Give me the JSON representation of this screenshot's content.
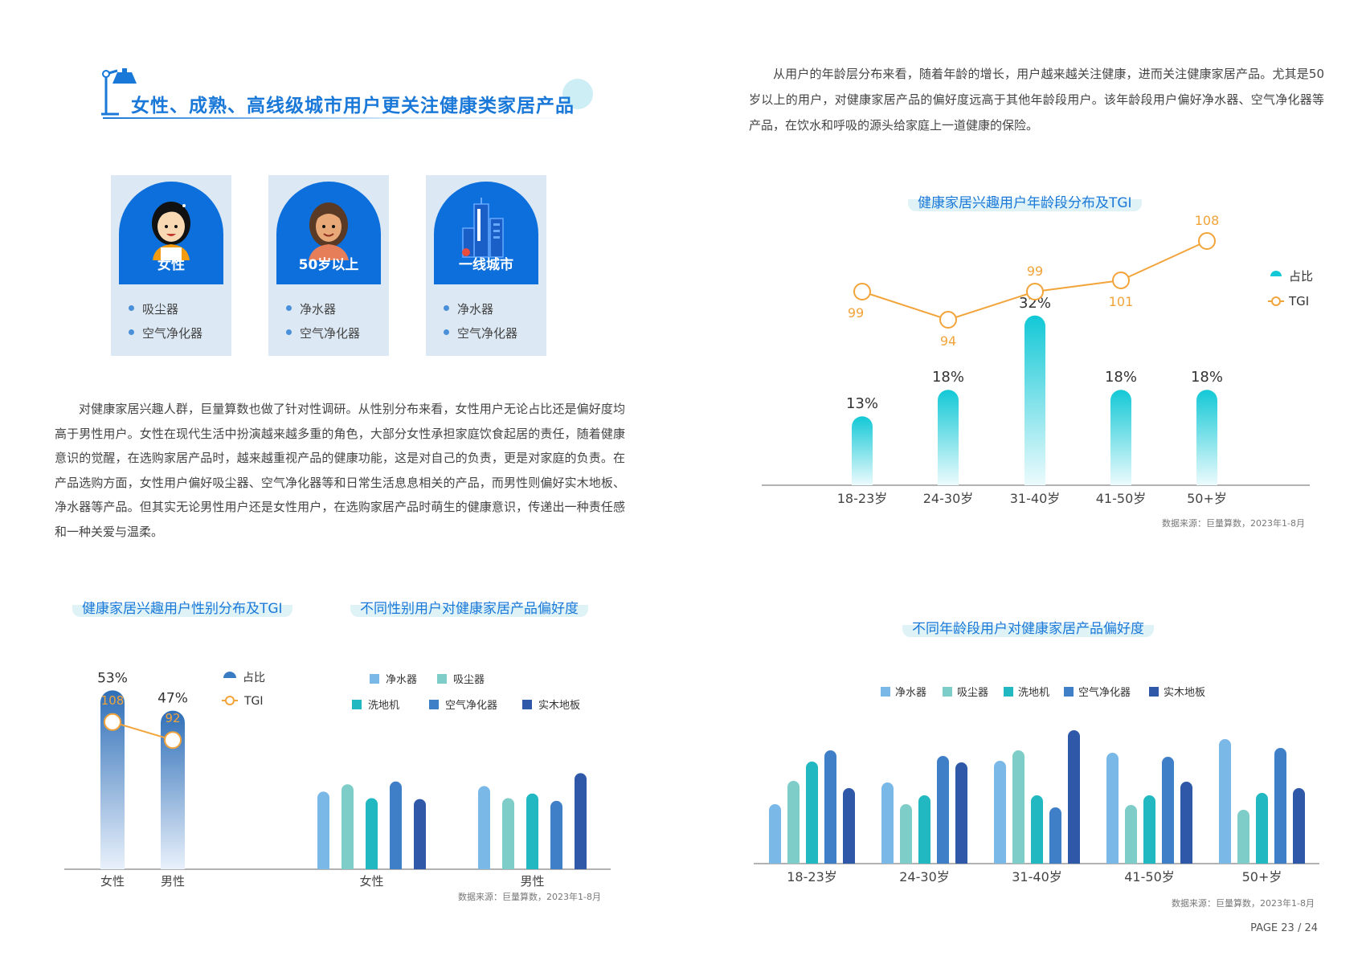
{
  "header": {
    "title": "女性、成熟、高线级城市用户更关注健康类家居产品"
  },
  "profiles": [
    {
      "label": "女性",
      "items": [
        "吸尘器",
        "空气净化器"
      ]
    },
    {
      "label": "50岁以上",
      "items": [
        "净水器",
        "空气净化器"
      ]
    },
    {
      "label": "一线城市",
      "items": [
        "净水器",
        "空气净化器"
      ]
    }
  ],
  "paragraph_left": "对健康家居兴趣人群，巨量算数也做了针对性调研。从性别分布来看，女性用户无论占比还是偏好度均高于男性用户。女性在现代生活中扮演越来越多重的角色，大部分女性承担家庭饮食起居的责任，随着健康意识的觉醒，在选购家居产品时，越来越重视产品的健康功能，这是对自己的负责，更是对家庭的负责。在产品选购方面，女性用户偏好吸尘器、空气净化器等和日常生活息息相关的产品，而男性则偏好实木地板、净水器等产品。但其实无论男性用户还是女性用户，在选购家居产品时萌生的健康意识，传递出一种责任感和一种关爱与温柔。",
  "paragraph_right": "从用户的年龄层分布来看，随着年龄的增长，用户越来越关注健康，进而关注健康家居产品。尤其是50岁以上的用户，对健康家居产品的偏好度远高于其他年龄段用户。该年龄段用户偏好净水器、空气净化器等产品，在饮水和呼吸的源头给家庭上一道健康的保险。",
  "source": "数据来源：巨量算数，2023年1-8月",
  "page": "PAGE 23 / 24",
  "colors": {
    "accent": "#1a78d8",
    "card_blue": "#0d6fdc",
    "tgi_orange": "#f2a43a",
    "teal": "#19c6d6",
    "p1": "#7ab8e8",
    "p2": "#7fcdc8",
    "p3": "#21b8c2",
    "p4": "#3f7fc8",
    "p5": "#2f58a8"
  },
  "chart_data": [
    {
      "id": "gender_share",
      "type": "bar+line",
      "title": "健康家居兴趣用户性别分布及TGI",
      "categories": [
        "女性",
        "男性"
      ],
      "series": [
        {
          "name": "占比",
          "values": [
            53,
            47
          ],
          "labels": [
            "53%",
            "47%"
          ]
        },
        {
          "name": "TGI",
          "values": [
            108,
            92
          ]
        }
      ],
      "legend": "top-right"
    },
    {
      "id": "gender_preference",
      "type": "bar",
      "title": "不同性别用户对健康家居产品偏好度",
      "categories": [
        "女性",
        "男性"
      ],
      "series": [
        {
          "name": "净水器",
          "values": [
            84,
            90
          ]
        },
        {
          "name": "吸尘器",
          "values": [
            92,
            77
          ]
        },
        {
          "name": "洗地机",
          "values": [
            77,
            82
          ]
        },
        {
          "name": "空气净化器",
          "values": [
            95,
            74
          ]
        },
        {
          "name": "实木地板",
          "values": [
            76,
            104
          ]
        }
      ],
      "legend": "top",
      "y_axis": "hidden"
    },
    {
      "id": "age_share",
      "type": "bar+line",
      "title": "健康家居兴趣用户年龄段分布及TGI",
      "categories": [
        "18-23岁",
        "24-30岁",
        "31-40岁",
        "41-50岁",
        "50+岁"
      ],
      "series": [
        {
          "name": "占比",
          "values": [
            13,
            18,
            32,
            18,
            18
          ],
          "labels": [
            "13%",
            "18%",
            "32%",
            "18%",
            "18%"
          ]
        },
        {
          "name": "TGI",
          "values": [
            99,
            94,
            99,
            101,
            108
          ]
        }
      ],
      "legend": "right"
    },
    {
      "id": "age_preference",
      "type": "bar",
      "title": "不同年龄段用户对健康家居产品偏好度",
      "categories": [
        "18-23岁",
        "24-30岁",
        "31-40岁",
        "41-50岁",
        "50+岁"
      ],
      "series": [
        {
          "name": "净水器",
          "values": [
            74,
            101,
            128,
            138,
            155
          ]
        },
        {
          "name": "吸尘器",
          "values": [
            103,
            74,
            141,
            73,
            67
          ]
        },
        {
          "name": "洗地机",
          "values": [
            127,
            85,
            85,
            85,
            88
          ]
        },
        {
          "name": "空气净化器",
          "values": [
            141,
            134,
            70,
            133,
            144
          ]
        },
        {
          "name": "实木地板",
          "values": [
            94,
            126,
            166,
            102,
            94
          ]
        }
      ],
      "legend": "top",
      "y_axis": "hidden"
    }
  ]
}
